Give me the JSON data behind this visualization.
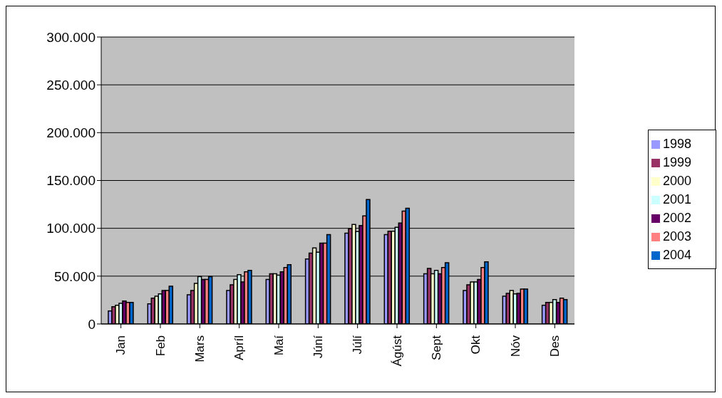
{
  "chart_data": {
    "type": "bar",
    "categories": [
      "Jan",
      "Feb",
      "Mars",
      "Apríl",
      "Maí",
      "Júní",
      "Júlí",
      "Ágúst",
      "Sept",
      "Okt",
      "Nóv",
      "Des"
    ],
    "series": [
      {
        "name": "1998",
        "color": "#9999ff",
        "values": [
          13500,
          21000,
          30500,
          35000,
          46500,
          68000,
          95000,
          93500,
          52500,
          35000,
          29000,
          19500
        ]
      },
      {
        "name": "1999",
        "color": "#993366",
        "values": [
          18000,
          27000,
          35000,
          41000,
          52500,
          74000,
          99500,
          97000,
          58000,
          41000,
          32000,
          22500
        ]
      },
      {
        "name": "2000",
        "color": "#ffffcc",
        "values": [
          19500,
          29000,
          42500,
          46500,
          52500,
          79500,
          104000,
          97000,
          52500,
          44000,
          35000,
          22500
        ]
      },
      {
        "name": "2001",
        "color": "#ccffff",
        "values": [
          21500,
          31500,
          49500,
          51500,
          51000,
          75000,
          96500,
          101000,
          56000,
          44000,
          31500,
          25500
        ]
      },
      {
        "name": "2002",
        "color": "#660066",
        "values": [
          24000,
          35000,
          46500,
          44000,
          54500,
          84500,
          103000,
          105500,
          52500,
          46500,
          32000,
          22500
        ]
      },
      {
        "name": "2003",
        "color": "#ff8080",
        "values": [
          22500,
          35000,
          46500,
          54500,
          59000,
          84500,
          113000,
          118000,
          59000,
          59000,
          36500,
          27000
        ]
      },
      {
        "name": "2004",
        "color": "#0066cc",
        "values": [
          22500,
          39500,
          49500,
          56000,
          62000,
          93500,
          130000,
          121000,
          64000,
          65000,
          36500,
          25500
        ]
      }
    ],
    "ylim": [
      0,
      300000
    ],
    "yticks": [
      0,
      {
        "value": 50000,
        "label": "50.000"
      },
      {
        "value": 100000,
        "label": "100.000"
      },
      {
        "value": 150000,
        "label": "150.000"
      },
      {
        "value": 200000,
        "label": "200.000"
      },
      {
        "value": 250000,
        "label": "250.000"
      },
      {
        "value": 300000,
        "label": "300.000"
      }
    ],
    "grid": "y",
    "legend": "right"
  }
}
